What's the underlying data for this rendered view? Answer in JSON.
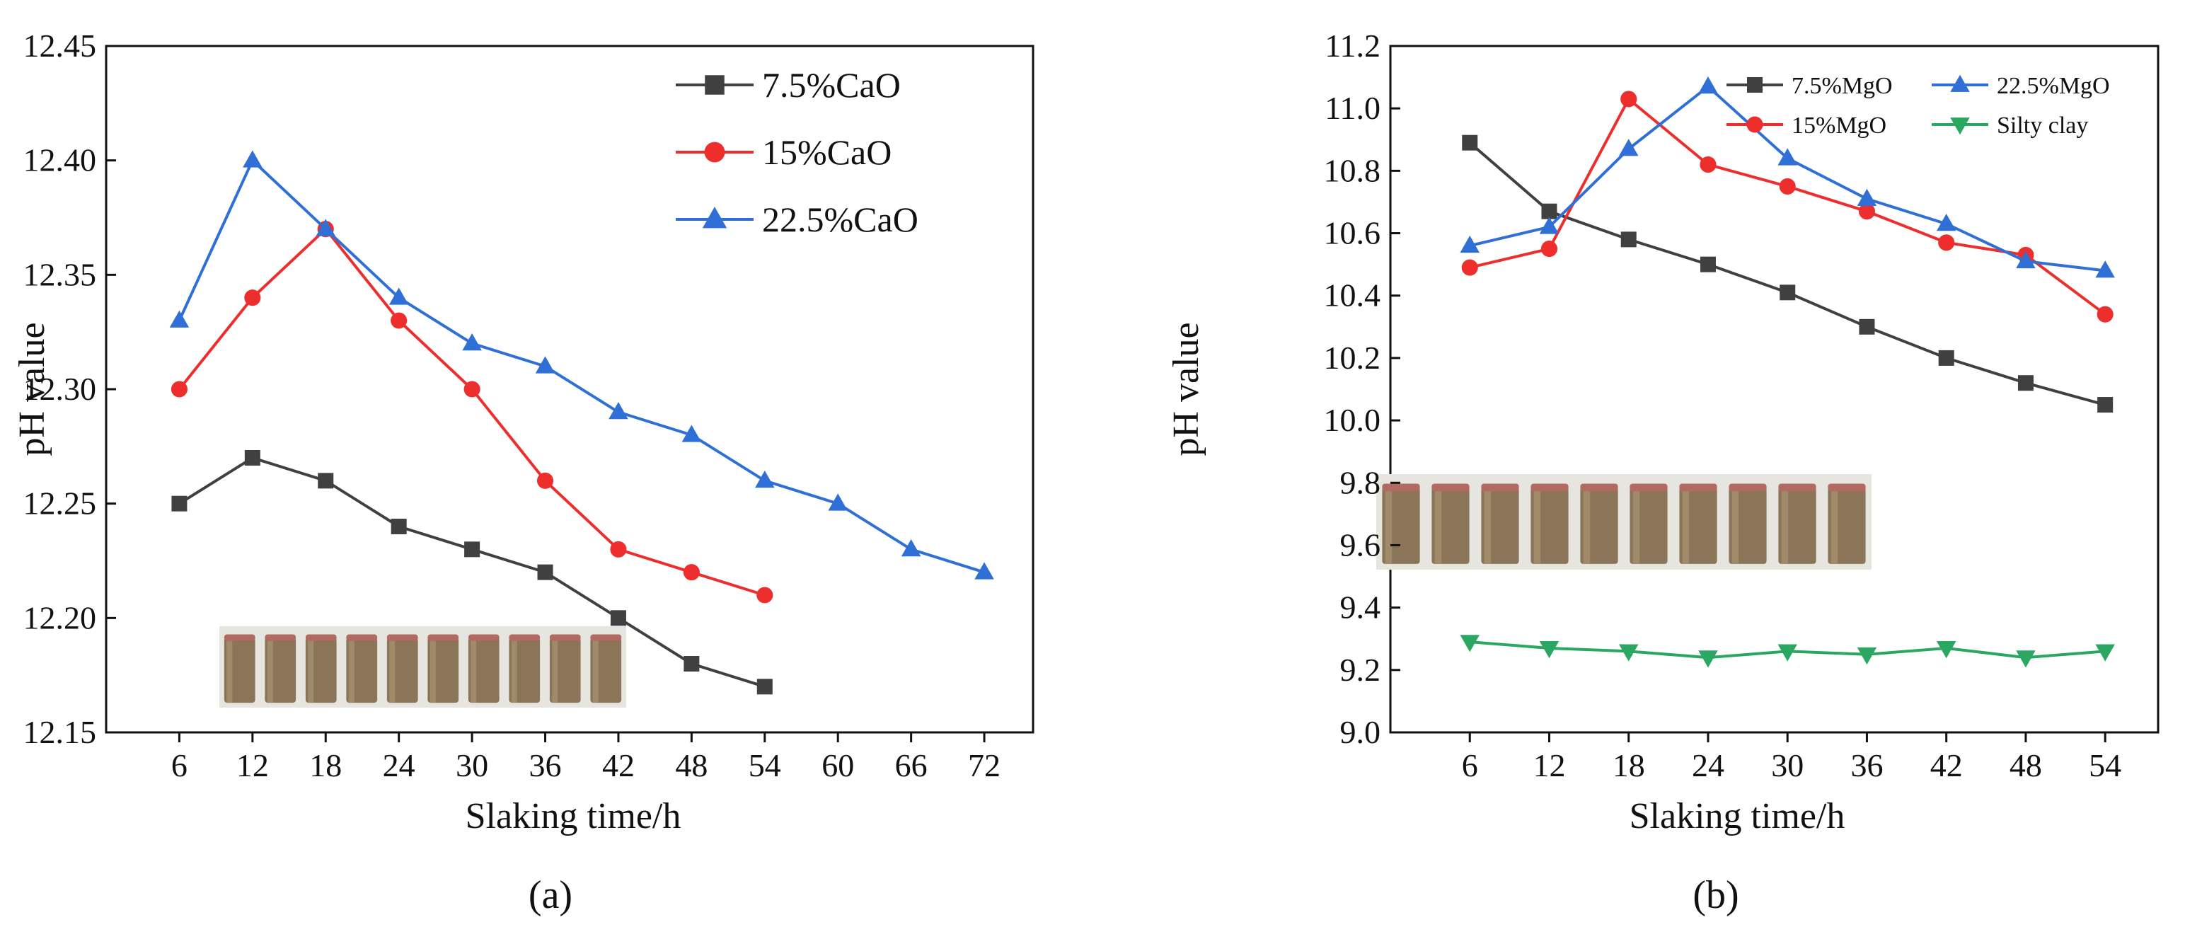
{
  "charts": [
    {
      "id": "a",
      "caption": "(a)",
      "chart_data": {
        "type": "line",
        "x": [
          6,
          12,
          18,
          24,
          30,
          36,
          42,
          48,
          54,
          60,
          66,
          72
        ],
        "xticks": [
          "6",
          "12",
          "18",
          "24",
          "30",
          "36",
          "42",
          "48",
          "54",
          "60",
          "66",
          "72"
        ],
        "yticks": [
          "12.15",
          "12.20",
          "12.25",
          "12.30",
          "12.35",
          "12.40",
          "12.45"
        ],
        "xlim": [
          0,
          76
        ],
        "ylim": [
          12.15,
          12.45
        ],
        "xlabel": "Slaking time/h",
        "ylabel": "pH value",
        "legend_position": "top-right",
        "series": [
          {
            "name": "7.5%CaO",
            "color": "#404040",
            "marker": "square",
            "values": [
              12.25,
              12.27,
              12.26,
              12.24,
              12.23,
              12.22,
              12.2,
              12.18,
              12.17,
              null,
              null,
              null
            ]
          },
          {
            "name": "15%CaO",
            "color": "#ee2d2d",
            "marker": "circle",
            "values": [
              12.3,
              12.34,
              12.37,
              12.33,
              12.3,
              12.26,
              12.23,
              12.22,
              12.21,
              null,
              null,
              null
            ]
          },
          {
            "name": "22.5%CaO",
            "color": "#2f6fd6",
            "marker": "triangle-up",
            "values": [
              12.33,
              12.4,
              12.37,
              12.34,
              12.32,
              12.31,
              12.29,
              12.28,
              12.26,
              12.25,
              12.23,
              12.22
            ]
          }
        ],
        "inset": "photo of cylindrical soil specimens"
      }
    },
    {
      "id": "b",
      "caption": "(b)",
      "chart_data": {
        "type": "line",
        "x": [
          6,
          12,
          18,
          24,
          30,
          36,
          42,
          48,
          54
        ],
        "xticks": [
          "6",
          "12",
          "18",
          "24",
          "30",
          "36",
          "42",
          "48",
          "54"
        ],
        "yticks": [
          "9.0",
          "9.2",
          "9.4",
          "9.6",
          "9.8",
          "10.0",
          "10.2",
          "10.4",
          "10.6",
          "10.8",
          "11.0",
          "11.2"
        ],
        "xlim": [
          0,
          58
        ],
        "ylim": [
          9.0,
          11.2
        ],
        "xlabel": "Slaking time/h",
        "ylabel": "pH value",
        "legend_position": "top",
        "series": [
          {
            "name": "7.5%MgO",
            "color": "#404040",
            "marker": "square",
            "values": [
              10.89,
              10.67,
              10.58,
              10.5,
              10.41,
              10.3,
              10.2,
              10.12,
              10.05
            ]
          },
          {
            "name": "15%MgO",
            "color": "#ee2d2d",
            "marker": "circle",
            "values": [
              10.49,
              10.55,
              11.03,
              10.82,
              10.75,
              10.67,
              10.57,
              10.53,
              10.34
            ]
          },
          {
            "name": "22.5%MgO",
            "color": "#2f6fd6",
            "marker": "triangle-up",
            "values": [
              10.56,
              10.62,
              10.87,
              11.07,
              10.84,
              10.71,
              10.63,
              10.51,
              10.48
            ]
          },
          {
            "name": "Silty clay",
            "color": "#2aa760",
            "marker": "triangle-down",
            "values": [
              9.29,
              9.27,
              9.26,
              9.24,
              9.26,
              9.25,
              9.27,
              9.24,
              9.26
            ]
          }
        ],
        "inset": "photo of cylindrical soil specimens"
      }
    }
  ]
}
